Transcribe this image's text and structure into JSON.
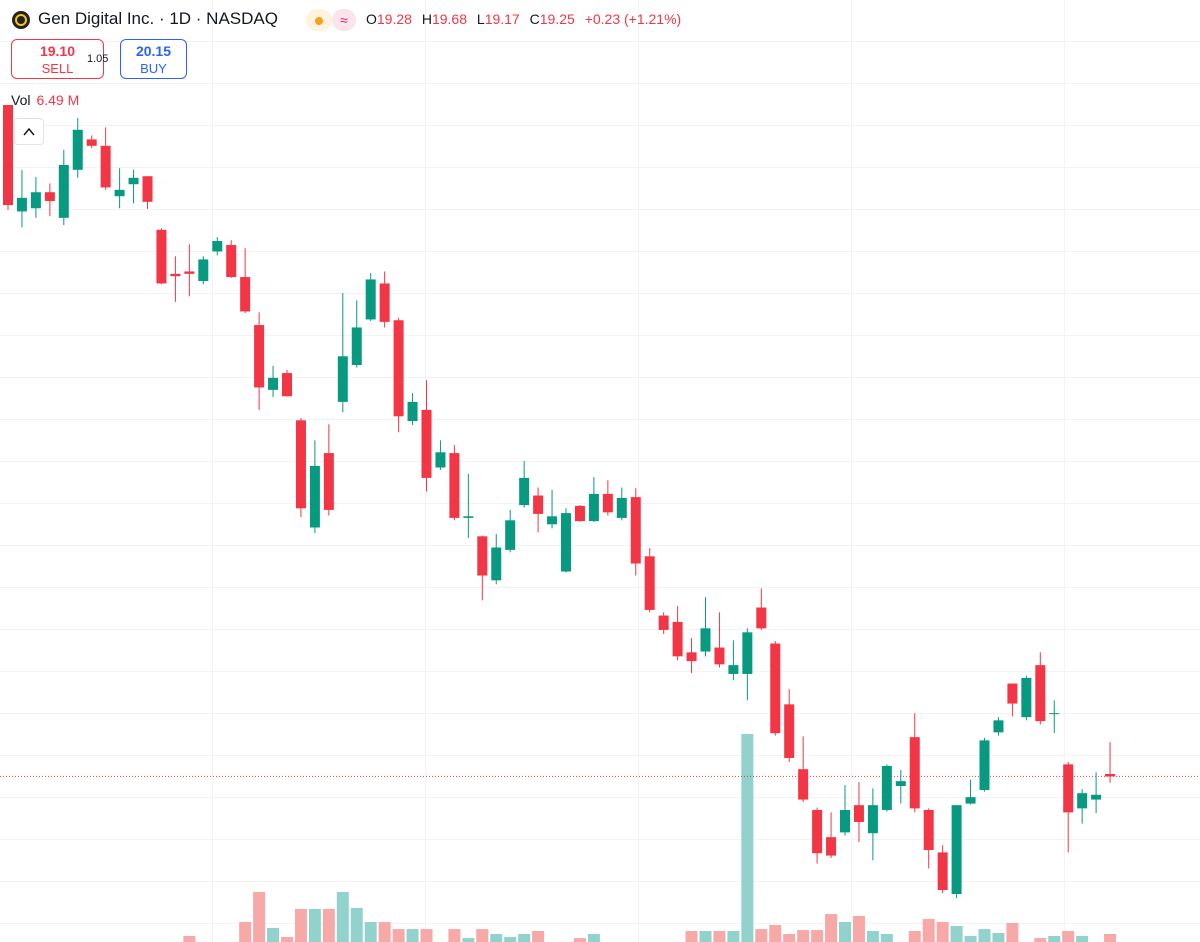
{
  "header": {
    "title": "Gen Digital Inc. · 1D · NASDAQ",
    "ohlc_labels": [
      "O",
      "H",
      "L",
      "C"
    ],
    "change_label": "+0.23 (+1.21%)",
    "sell_price": "19.10",
    "sell_label": "SELL",
    "spread": "1.05",
    "buy_price": "20.15",
    "buy_label": "BUY",
    "volume_title": "Vol",
    "volume_last_label": "6.49 M"
  },
  "chart_data": {
    "type": "candlestick",
    "up_color": "#089981",
    "down_color": "#f23645",
    "volume_up_color": "#92d2cc",
    "volume_down_color": "#f7a9a7",
    "open": [
      27.64,
      26.31,
      26.35,
      26.55,
      26.23,
      26.83,
      27.21,
      27.13,
      26.5,
      26.65,
      26.75,
      26.08,
      25.53,
      25.56,
      25.44,
      25.81,
      25.89,
      25.49,
      24.89,
      24.08,
      24.29,
      23.7,
      22.36,
      23.29,
      23.93,
      24.39,
      24.96,
      25.41,
      24.95,
      23.69,
      23.83,
      23.11,
      23.29,
      22.48,
      22.25,
      21.7,
      22.08,
      22.64,
      22.76,
      22.4,
      21.81,
      22.63,
      22.44,
      22.78,
      22.48,
      22.74,
      22.0,
      21.26,
      21.18,
      20.8,
      20.81,
      20.86,
      20.53,
      20.53,
      21.36,
      20.91,
      20.15,
      19.34,
      18.83,
      18.49,
      18.55,
      18.89,
      18.54,
      18.83,
      19.13,
      19.74,
      18.83,
      18.3,
      17.78,
      18.91,
      19.08,
      19.8,
      20.41,
      19.99,
      20.64,
      20.03,
      19.4,
      18.85,
      18.96,
      19.28
    ],
    "high": [
      27.64,
      26.83,
      26.74,
      26.66,
      27.08,
      27.48,
      27.26,
      27.36,
      26.85,
      26.83,
      26.75,
      26.1,
      25.75,
      25.9,
      25.75,
      25.99,
      25.95,
      25.85,
      25.05,
      24.38,
      24.33,
      23.73,
      23.45,
      23.65,
      25.29,
      25.2,
      25.54,
      25.56,
      24.98,
      24.04,
      24.2,
      23.45,
      23.39,
      23.03,
      22.26,
      22.28,
      22.58,
      23.19,
      22.86,
      22.83,
      22.6,
      22.64,
      22.99,
      22.95,
      22.86,
      22.85,
      22.1,
      21.3,
      21.38,
      20.98,
      21.49,
      21.3,
      20.95,
      21.1,
      21.6,
      20.94,
      20.34,
      19.75,
      18.86,
      18.8,
      19.14,
      19.18,
      19.1,
      19.4,
      19.33,
      20.04,
      18.85,
      18.39,
      18.89,
      19.21,
      19.73,
      19.99,
      20.41,
      20.51,
      20.8,
      20.2,
      19.43,
      19.09,
      19.3,
      19.68
    ],
    "low": [
      26.33,
      26.11,
      26.23,
      26.25,
      26.14,
      26.73,
      27.1,
      26.58,
      26.35,
      26.41,
      26.34,
      25.4,
      25.18,
      25.25,
      25.4,
      25.76,
      25.48,
      25.04,
      23.83,
      23.99,
      24.0,
      22.49,
      22.29,
      22.51,
      23.8,
      24.36,
      24.94,
      24.86,
      23.55,
      23.64,
      22.81,
      23.08,
      22.45,
      22.23,
      21.45,
      21.65,
      22.05,
      22.61,
      22.3,
      22.35,
      21.8,
      22.43,
      22.43,
      22.51,
      22.45,
      21.76,
      21.3,
      21.03,
      20.7,
      20.54,
      20.75,
      20.61,
      20.45,
      20.2,
      21.08,
      19.76,
      19.43,
      18.93,
      18.16,
      18.23,
      18.51,
      18.43,
      18.2,
      18.81,
      18.91,
      18.8,
      18.1,
      17.79,
      17.73,
      18.9,
      19.06,
      19.76,
      20.0,
      19.95,
      19.9,
      19.79,
      18.3,
      18.66,
      18.79,
      19.17
    ],
    "close": [
      26.39,
      26.48,
      26.55,
      26.44,
      26.89,
      27.33,
      27.13,
      26.61,
      26.58,
      26.73,
      26.43,
      25.41,
      25.5,
      25.53,
      25.71,
      25.94,
      25.49,
      25.06,
      24.11,
      24.23,
      24.0,
      22.6,
      23.13,
      22.58,
      24.5,
      24.86,
      25.46,
      24.93,
      23.75,
      23.93,
      22.98,
      23.3,
      22.48,
      22.5,
      21.76,
      22.11,
      22.45,
      22.98,
      22.53,
      22.5,
      22.54,
      22.44,
      22.78,
      22.55,
      22.73,
      21.91,
      21.33,
      21.08,
      20.75,
      20.69,
      21.1,
      20.65,
      20.64,
      21.05,
      21.1,
      19.79,
      19.48,
      18.96,
      18.29,
      18.26,
      18.83,
      18.68,
      18.89,
      19.38,
      19.19,
      18.85,
      18.33,
      17.83,
      18.89,
      18.99,
      19.7,
      19.95,
      20.16,
      20.48,
      19.94,
      20.04,
      18.8,
      19.04,
      19.02,
      19.25
    ],
    "volume": [
      null,
      null,
      null,
      null,
      null,
      null,
      null,
      null,
      null,
      null,
      null,
      null,
      null,
      4.9,
      null,
      null,
      null,
      16.2,
      40.6,
      11.4,
      4.1,
      26.8,
      26.8,
      26.8,
      40.6,
      27.6,
      16.2,
      16.2,
      10.5,
      10.5,
      10.5,
      null,
      10.5,
      3.2,
      10.5,
      6.5,
      4.1,
      6.5,
      8.9,
      null,
      null,
      3.2,
      6.5,
      null,
      null,
      null,
      null,
      null,
      null,
      8.9,
      8.9,
      8.9,
      8.9,
      168.7,
      10.5,
      13.8,
      6.5,
      9.7,
      9.7,
      22.7,
      16.2,
      21.1,
      8.9,
      6.5,
      null,
      8.9,
      18.7,
      16.2,
      13.0,
      4.9,
      10.5,
      7.3,
      15.4,
      null,
      3.2,
      4.9,
      8.9,
      4.9,
      null,
      6.49
    ]
  }
}
